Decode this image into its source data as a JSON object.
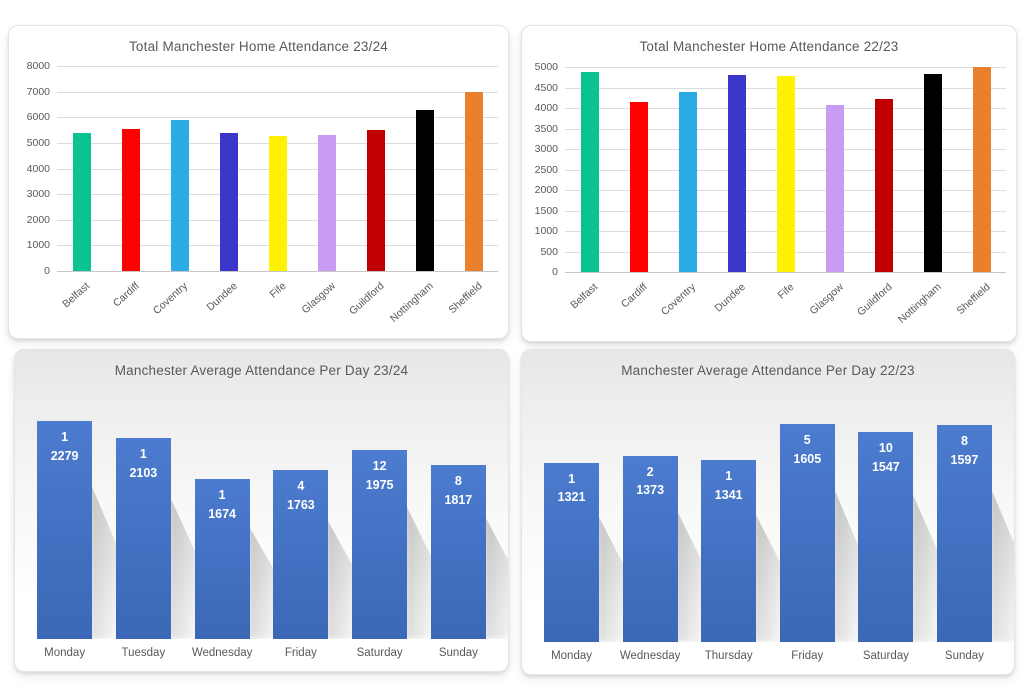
{
  "colors": {
    "title_text": "#595959",
    "axis_text": "#595959",
    "gridline": "#dcdcdc",
    "card_border": "#e4e4e4",
    "daily_bar_blue": "#4472c4",
    "daily_label_text": "#ffffff"
  },
  "chart_data": [
    {
      "id": "total-2324",
      "type": "bar",
      "style": "axis-bar",
      "title": "Total Manchester Home Attendance 23/24",
      "xlabel": "",
      "ylabel": "",
      "ylim": [
        0,
        8000
      ],
      "ystep": 1000,
      "grid": true,
      "legend": "none",
      "categories": [
        "Belfast",
        "Cardiff",
        "Coventry",
        "Dundee",
        "Fife",
        "Glasgow",
        "Guildford",
        "Nottingham",
        "Sheffield"
      ],
      "values": [
        5400,
        5550,
        5900,
        5400,
        5270,
        5320,
        5520,
        6270,
        7000
      ],
      "colors": [
        "#0bc392",
        "#fd0000",
        "#2aabe4",
        "#3936c9",
        "#fff200",
        "#c89cf2",
        "#c00000",
        "#000000",
        "#e9802e"
      ]
    },
    {
      "id": "total-2223",
      "type": "bar",
      "style": "axis-bar",
      "title": "Total Manchester Home Attendance 22/23",
      "xlabel": "",
      "ylabel": "",
      "ylim": [
        0,
        5000
      ],
      "ystep": 500,
      "grid": true,
      "legend": "none",
      "categories": [
        "Belfast",
        "Cardiff",
        "Coventry",
        "Dundee",
        "Fife",
        "Glasgow",
        "Guildford",
        "Nottingham",
        "Sheffield"
      ],
      "values": [
        4880,
        4150,
        4400,
        4800,
        4780,
        4080,
        4230,
        4820,
        5000
      ],
      "colors": [
        "#0bc392",
        "#fd0000",
        "#2aabe4",
        "#3936c9",
        "#fff200",
        "#c89cf2",
        "#c00000",
        "#000000",
        "#e9802e"
      ]
    },
    {
      "id": "avg-2324",
      "type": "bar",
      "style": "labeled-bar",
      "title": "Manchester Average Attendance Per Day 23/24",
      "xlabel": "",
      "ylabel": "",
      "grid": false,
      "legend": "none",
      "bar_color": "#4472c4",
      "categories": [
        "Monday",
        "Tuesday",
        "Wednesday",
        "Friday",
        "Saturday",
        "Sunday"
      ],
      "series": [
        {
          "name": "count",
          "values": [
            1,
            1,
            1,
            4,
            12,
            8
          ]
        },
        {
          "name": "average",
          "values": [
            2279,
            2103,
            1674,
            1763,
            1975,
            1817
          ]
        }
      ]
    },
    {
      "id": "avg-2223",
      "type": "bar",
      "style": "labeled-bar",
      "title": "Manchester Average Attendance Per Day 22/23",
      "xlabel": "",
      "ylabel": "",
      "grid": false,
      "legend": "none",
      "bar_color": "#4472c4",
      "categories": [
        "Monday",
        "Wednesday",
        "Thursday",
        "Friday",
        "Saturday",
        "Sunday"
      ],
      "series": [
        {
          "name": "count",
          "values": [
            1,
            2,
            1,
            5,
            10,
            8
          ]
        },
        {
          "name": "average",
          "values": [
            1321,
            1373,
            1341,
            1605,
            1547,
            1597
          ]
        }
      ]
    }
  ]
}
